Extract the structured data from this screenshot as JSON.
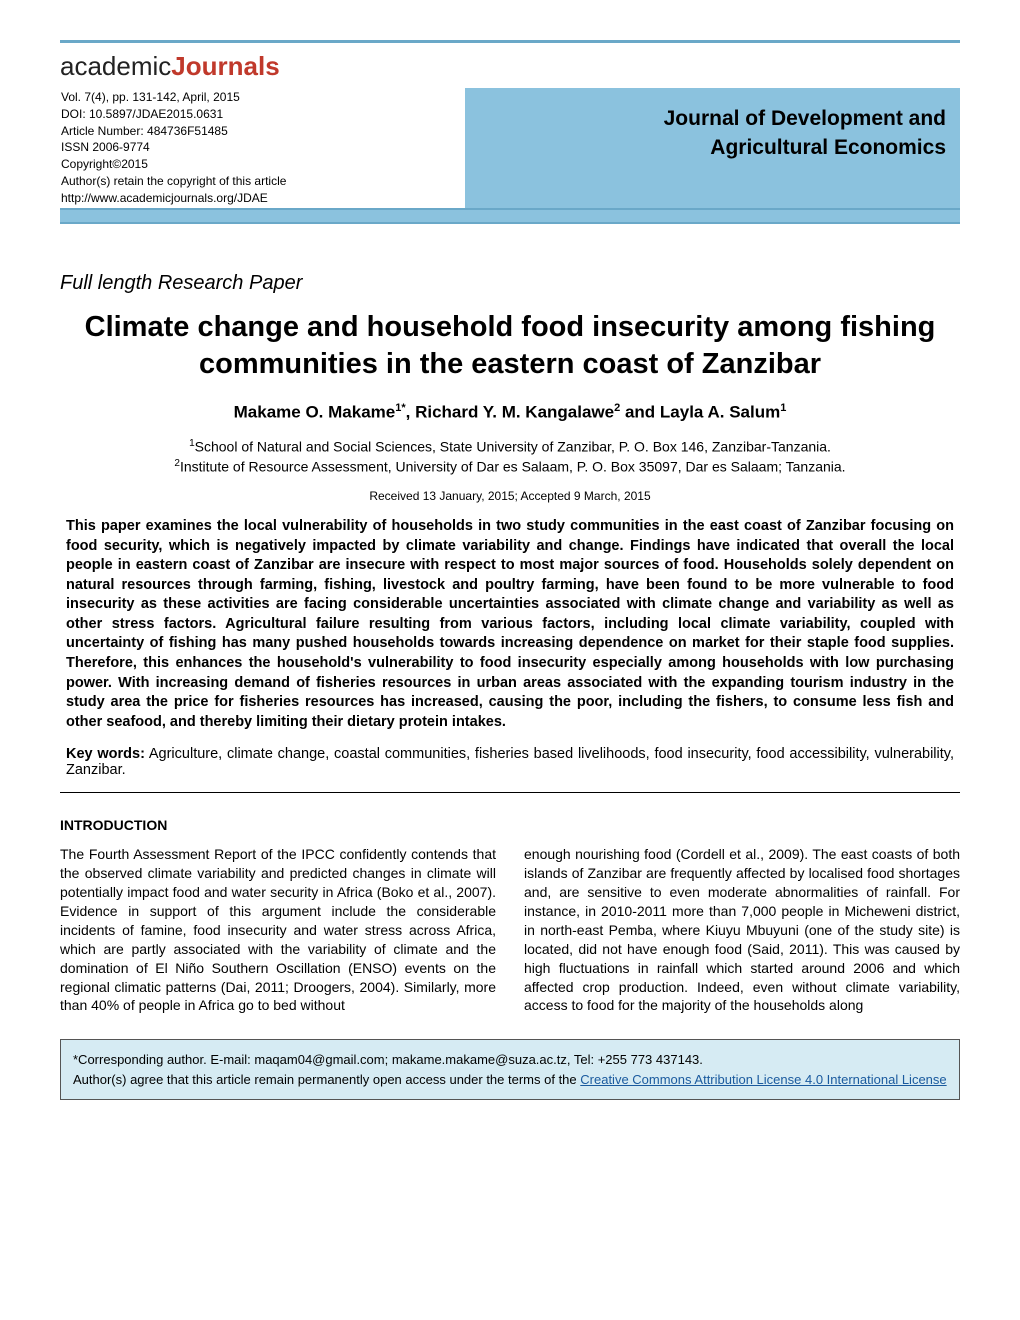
{
  "logo": {
    "prefix": "academic",
    "highlight": "Journals"
  },
  "meta": {
    "vol_line": "Vol. 7(4), pp. 131-142, April, 2015",
    "doi_line": "DOI: 10.5897/JDAE2015.0631",
    "article_number": "Article Number: 484736F51485",
    "issn": "ISSN 2006-9774",
    "copyright": "Copyright©2015",
    "authors_retain": "Author(s) retain the copyright of this article",
    "url": "http://www.academicjournals.org/JDAE"
  },
  "journal_name_line1": "Journal of Development and",
  "journal_name_line2": "Agricultural Economics",
  "section_label": "Full length Research Paper",
  "title": "Climate change and household food insecurity among fishing communities in the eastern coast of Zanzibar",
  "authors_html": "Makame O. Makame",
  "author1_sup": "1*",
  "author_sep1": ", Richard Y. M. Kangalawe",
  "author2_sup": "2",
  "author_sep2": " and Layla A. Salum",
  "author3_sup": "1",
  "affil1_sup": "1",
  "affil1": "School of Natural and Social Sciences, State University of Zanzibar, P. O. Box 146, Zanzibar-Tanzania.",
  "affil2_sup": "2",
  "affil2": "Institute of Resource Assessment, University of Dar es Salaam, P. O. Box 35097, Dar es Salaam; Tanzania.",
  "dates": "Received 13 January, 2015; Accepted 9 March, 2015",
  "abstract": "This paper examines the local vulnerability of households in two study communities in the east coast of Zanzibar focusing on food security, which is negatively impacted by climate variability and change. Findings have indicated that overall the local people in eastern coast of Zanzibar are insecure with respect to most major sources of food. Households solely dependent on natural resources through farming, fishing, livestock and poultry farming, have been found to be more vulnerable to food insecurity as these activities are facing considerable uncertainties associated with climate change and variability as well as other stress factors. Agricultural failure resulting from various factors, including local climate variability, coupled with uncertainty of fishing has many pushed households towards increasing dependence on market for their staple food supplies. Therefore, this enhances the household's vulnerability to food insecurity especially among households with low purchasing power. With increasing demand of fisheries resources in urban areas associated with the expanding tourism industry in the study area the price for fisheries resources has increased, causing the poor, including the fishers, to consume less fish and other seafood, and thereby limiting their dietary protein intakes.",
  "keywords_label": "Key words:",
  "keywords": " Agriculture, climate change, coastal communities, fisheries based livelihoods, food insecurity, food accessibility, vulnerability, Zanzibar.",
  "intro_heading": "INTRODUCTION",
  "col1": "The Fourth Assessment Report of the IPCC confidently contends that the observed climate variability and predicted changes in climate will potentially impact food and water security in Africa (Boko et al., 2007). Evidence in support of this argument include the considerable incidents of famine, food insecurity and water stress across Africa, which are partly associated with the variability of climate and the domination of El Niño Southern Oscillation (ENSO) events on the regional climatic patterns (Dai, 2011; Droogers, 2004). Similarly, more than 40% of people in Africa go to bed without",
  "col2": "enough nourishing food (Cordell et al., 2009). The east coasts of both islands of Zanzibar are frequently affected by localised food shortages and, are sensitive to even moderate abnormalities of rainfall. For instance, in 2010-2011 more than 7,000 people in Micheweni district, in north-east Pemba, where Kiuyu Mbuyuni (one of the study site) is located, did not have enough food (Said, 2011). This was caused by high fluctuations in rainfall which started around 2006 and which affected crop production. Indeed, even without climate variability, access to food for the majority of  the  households  along",
  "footer": {
    "corresponding": "*Corresponding author. E-mail: maqam04@gmail.com; makame.makame@suza.ac.tz, Tel: +255 773 437143.",
    "license_text": "Author(s) agree that this article remain permanently open access under the terms of the ",
    "license_link": "Creative Commons Attribution License 4.0 International License"
  },
  "colors": {
    "header_blue": "#8bc2de",
    "rule_blue": "#6aa8c8",
    "footer_blue": "#d6ebf3",
    "logo_red": "#c0392b"
  }
}
